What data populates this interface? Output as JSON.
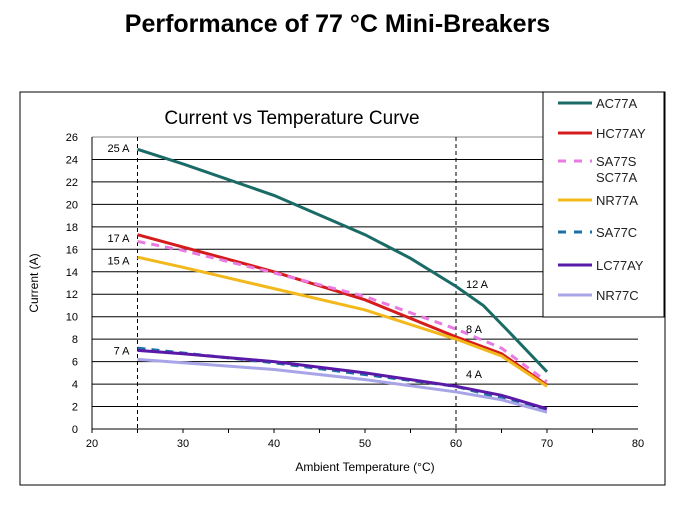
{
  "slide_title": "Performance of 77 °C Mini-Breakers",
  "chart_data": {
    "type": "line",
    "title": "Current vs Temperature Curve",
    "xlabel": "Ambient Temperature (°C)",
    "ylabel": "Current (A)",
    "xlim": [
      20,
      80
    ],
    "ylim": [
      0,
      26
    ],
    "xticks": [
      20,
      30,
      40,
      50,
      60,
      70,
      80
    ],
    "yticks": [
      0,
      2,
      4,
      6,
      8,
      10,
      12,
      14,
      16,
      18,
      20,
      22,
      24,
      26
    ],
    "grid": "horizontal",
    "legend_position": "right",
    "reference_lines_x": [
      25,
      60
    ],
    "annotations": [
      {
        "text": "25 A",
        "x": 25,
        "y": 25
      },
      {
        "text": "17 A",
        "x": 25,
        "y": 17
      },
      {
        "text": "15 A",
        "x": 25,
        "y": 15
      },
      {
        "text": "7 A",
        "x": 25,
        "y": 7
      },
      {
        "text": "12 A",
        "x": 60,
        "y": 12
      },
      {
        "text": "8 A",
        "x": 60,
        "y": 8
      },
      {
        "text": "4 A",
        "x": 60,
        "y": 4
      }
    ],
    "series": [
      {
        "name": "AC77A",
        "color": "#1a6b66",
        "dash": false,
        "x": [
          25,
          30,
          40,
          50,
          55,
          60,
          63,
          66,
          70
        ],
        "y": [
          24.9,
          23.6,
          20.8,
          17.3,
          15.2,
          12.7,
          11,
          8.5,
          5.1
        ]
      },
      {
        "name": "HC77AY",
        "color": "#d41c1c",
        "dash": false,
        "x": [
          25,
          30,
          40,
          50,
          60,
          65,
          70
        ],
        "y": [
          17.3,
          16.2,
          14.0,
          11.5,
          8.2,
          6.7,
          3.9
        ]
      },
      {
        "name": "SA77S\nSC77A",
        "color": "#e87ae0",
        "dash": true,
        "x": [
          25,
          30,
          40,
          50,
          60,
          65,
          70
        ],
        "y": [
          16.7,
          15.9,
          13.9,
          11.8,
          8.9,
          7.2,
          4.2
        ]
      },
      {
        "name": "NR77A",
        "color": "#f2b81c",
        "dash": false,
        "x": [
          25,
          30,
          40,
          50,
          60,
          65,
          70
        ],
        "y": [
          15.3,
          14.4,
          12.5,
          10.6,
          8.0,
          6.5,
          3.8
        ]
      },
      {
        "name": "SA77C",
        "color": "#1c6fa8",
        "dash": true,
        "x": [
          25,
          40,
          60,
          70
        ],
        "y": [
          7.2,
          5.9,
          3.8,
          1.7
        ]
      },
      {
        "name": "LC77AY",
        "color": "#5a1aa8",
        "dash": false,
        "x": [
          25,
          30,
          40,
          50,
          60,
          65,
          70
        ],
        "y": [
          7.0,
          6.7,
          6.0,
          5.0,
          3.8,
          3.0,
          1.8
        ]
      },
      {
        "name": "NR77C",
        "color": "#a8a4e8",
        "dash": false,
        "x": [
          25,
          30,
          40,
          50,
          60,
          65,
          70
        ],
        "y": [
          6.2,
          5.9,
          5.3,
          4.4,
          3.3,
          2.6,
          1.5
        ]
      }
    ]
  }
}
